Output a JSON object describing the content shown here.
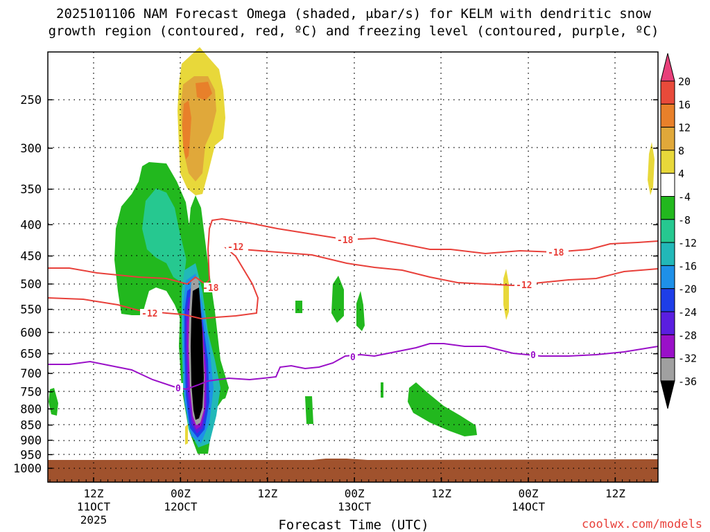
{
  "chart_data": {
    "type": "heatmap",
    "title_line1": "2025101106 NAM Forecast Omega (shaded, μbar/s) for KELM with dendritic snow",
    "title_line2": "growth region (contoured, red, ºC) and freezing level (contoured, purple, ºC)",
    "xlabel": "Forecast Time (UTC)",
    "ylabel": "",
    "y_scale": "log-pressure (hPa)",
    "y_ticks": [
      250,
      300,
      350,
      400,
      450,
      500,
      550,
      600,
      650,
      700,
      750,
      800,
      850,
      900,
      950,
      1000
    ],
    "x_ticks": [
      {
        "line1": "12Z",
        "line2": "11OCT",
        "line3": "2025"
      },
      {
        "line1": "00Z",
        "line2": "12OCT",
        "line3": ""
      },
      {
        "line1": "12Z",
        "line2": "",
        "line3": ""
      },
      {
        "line1": "00Z",
        "line2": "13OCT",
        "line3": ""
      },
      {
        "line1": "12Z",
        "line2": "",
        "line3": ""
      },
      {
        "line1": "00Z",
        "line2": "14OCT",
        "line3": ""
      },
      {
        "line1": "12Z",
        "line2": "",
        "line3": ""
      }
    ],
    "grid": "dotted",
    "colorbar": {
      "labels": [
        "20",
        "16",
        "12",
        "8",
        "4",
        "-4",
        "-8",
        "-12",
        "-16",
        "-20",
        "-24",
        "-28",
        "-32",
        "-36"
      ],
      "colors": [
        "#e8407a",
        "#e84a3a",
        "#e8802a",
        "#e0a83a",
        "#e8d83a",
        "#ffffff",
        "#22b81e",
        "#26c890",
        "#22b8b8",
        "#1e90e8",
        "#1e3ee8",
        "#5a1ee0",
        "#9a10c8",
        "#a0a0a0",
        "#000000"
      ]
    },
    "contour_labels": {
      "dgz_minus18": "-18",
      "dgz_minus12": "-12",
      "freezing_0": "0"
    },
    "contour_colors": {
      "dgz": "#e8403a",
      "freezing": "#9a10c8",
      "ground": "#a0522d"
    }
  },
  "footer": {
    "credit": "coolwx.com/models"
  }
}
